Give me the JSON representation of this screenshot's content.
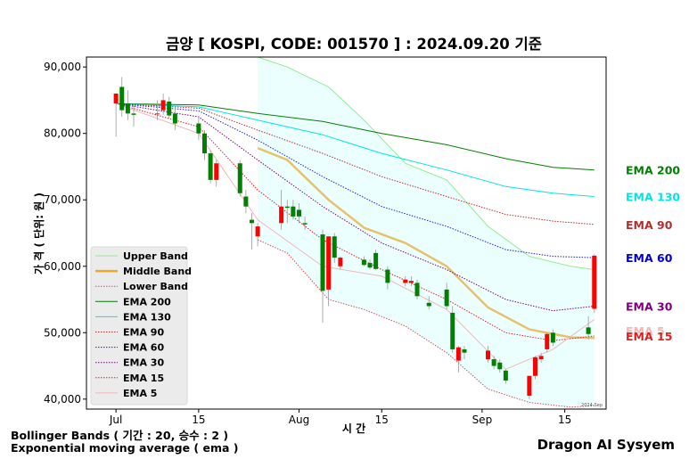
{
  "chart_data": {
    "type": "candlestick",
    "title": "금양 [ KOSPI, CODE: 001570 ] : 2024.09.20 기준",
    "xlabel": "시 간",
    "ylabel": "가 격 ( 단위: 원 )",
    "ylim": [
      38500,
      91500
    ],
    "yticks": [
      40000,
      50000,
      60000,
      70000,
      80000,
      90000
    ],
    "ytick_labels": [
      "40,000",
      "50,000",
      "60,000",
      "70,000",
      "80,000",
      "90,000"
    ],
    "xticks": [
      {
        "date": "2024-07-01",
        "label": "Jul"
      },
      {
        "date": "2024-07-15",
        "label": "15"
      },
      {
        "date": "2024-08-01",
        "label": "Aug"
      },
      {
        "date": "2024-08-15",
        "label": "15"
      },
      {
        "date": "2024-09-01",
        "label": "Sep"
      },
      {
        "date": "2024-09-15",
        "label": "15"
      }
    ],
    "xrange": [
      "2024-06-26",
      "2024-09-22"
    ],
    "corner_label": "2024-Sep",
    "grid": false,
    "legend_position": "lower-left",
    "candles": [
      {
        "date": "2024-07-01",
        "open": 84500,
        "high": 86000,
        "low": 79500,
        "close": 86000
      },
      {
        "date": "2024-07-02",
        "open": 87000,
        "high": 88500,
        "low": 82500,
        "close": 83500
      },
      {
        "date": "2024-07-03",
        "open": 84500,
        "high": 86500,
        "low": 82000,
        "close": 83000
      },
      {
        "date": "2024-07-04",
        "open": 83000,
        "high": 84500,
        "low": 81000,
        "close": 82800
      },
      {
        "date": "2024-07-08",
        "open": 83000,
        "high": 85000,
        "low": 82000,
        "close": 83000
      },
      {
        "date": "2024-07-09",
        "open": 83500,
        "high": 86000,
        "low": 82800,
        "close": 85000
      },
      {
        "date": "2024-07-10",
        "open": 84800,
        "high": 85500,
        "low": 82300,
        "close": 82700
      },
      {
        "date": "2024-07-11",
        "open": 83000,
        "high": 84000,
        "low": 80500,
        "close": 81500
      },
      {
        "date": "2024-07-15",
        "open": 81500,
        "high": 82500,
        "low": 79000,
        "close": 80000
      },
      {
        "date": "2024-07-16",
        "open": 80000,
        "high": 80500,
        "low": 76000,
        "close": 77000
      },
      {
        "date": "2024-07-17",
        "open": 77000,
        "high": 77500,
        "low": 72500,
        "close": 73000
      },
      {
        "date": "2024-07-18",
        "open": 73000,
        "high": 76000,
        "low": 72000,
        "close": 75500
      },
      {
        "date": "2024-07-22",
        "open": 75500,
        "high": 76000,
        "low": 70500,
        "close": 71000
      },
      {
        "date": "2024-07-23",
        "open": 70500,
        "high": 71500,
        "low": 68000,
        "close": 69000
      },
      {
        "date": "2024-07-24",
        "open": 67000,
        "high": 68000,
        "low": 62500,
        "close": 66500
      },
      {
        "date": "2024-07-25",
        "open": 64500,
        "high": 66500,
        "low": 63000,
        "close": 66000
      },
      {
        "date": "2024-07-29",
        "open": 66500,
        "high": 71500,
        "low": 65500,
        "close": 69000
      },
      {
        "date": "2024-07-30",
        "open": 69000,
        "high": 70000,
        "low": 66500,
        "close": 68800
      },
      {
        "date": "2024-07-31",
        "open": 69000,
        "high": 70000,
        "low": 67000,
        "close": 67500
      },
      {
        "date": "2024-08-01",
        "open": 68500,
        "high": 69500,
        "low": 66500,
        "close": 67500
      },
      {
        "date": "2024-08-02",
        "open": 66500,
        "high": 67500,
        "low": 65500,
        "close": 66300
      },
      {
        "date": "2024-08-05",
        "open": 64800,
        "high": 65500,
        "low": 51500,
        "close": 56300
      },
      {
        "date": "2024-08-06",
        "open": 56500,
        "high": 64500,
        "low": 54000,
        "close": 64500
      },
      {
        "date": "2024-08-07",
        "open": 64500,
        "high": 65000,
        "low": 60500,
        "close": 61300
      },
      {
        "date": "2024-08-08",
        "open": 60000,
        "high": 61500,
        "low": 59500,
        "close": 61300
      },
      {
        "date": "2024-08-12",
        "open": 61000,
        "high": 61500,
        "low": 60000,
        "close": 60200
      },
      {
        "date": "2024-08-13",
        "open": 60500,
        "high": 61000,
        "low": 59500,
        "close": 59800
      },
      {
        "date": "2024-08-14",
        "open": 62000,
        "high": 62500,
        "low": 59500,
        "close": 59600
      },
      {
        "date": "2024-08-16",
        "open": 59500,
        "high": 60000,
        "low": 56500,
        "close": 57500
      },
      {
        "date": "2024-08-19",
        "open": 57500,
        "high": 58500,
        "low": 57000,
        "close": 58000
      },
      {
        "date": "2024-08-20",
        "open": 57500,
        "high": 58500,
        "low": 57000,
        "close": 57800
      },
      {
        "date": "2024-08-21",
        "open": 57500,
        "high": 58000,
        "low": 55000,
        "close": 55500
      },
      {
        "date": "2024-08-23",
        "open": 54500,
        "high": 55500,
        "low": 53500,
        "close": 54000
      },
      {
        "date": "2024-08-26",
        "open": 56500,
        "high": 57500,
        "low": 53500,
        "close": 54000
      },
      {
        "date": "2024-08-27",
        "open": 53000,
        "high": 54000,
        "low": 47000,
        "close": 47500
      },
      {
        "date": "2024-08-28",
        "open": 45800,
        "high": 48000,
        "low": 44000,
        "close": 47800
      },
      {
        "date": "2024-08-29",
        "open": 47500,
        "high": 48000,
        "low": 46000,
        "close": 47000
      },
      {
        "date": "2024-09-02",
        "open": 46000,
        "high": 48000,
        "low": 45500,
        "close": 47300
      },
      {
        "date": "2024-09-03",
        "open": 46000,
        "high": 46500,
        "low": 44500,
        "close": 45000
      },
      {
        "date": "2024-09-04",
        "open": 45500,
        "high": 46000,
        "low": 44000,
        "close": 44500
      },
      {
        "date": "2024-09-05",
        "open": 44300,
        "high": 44500,
        "low": 42300,
        "close": 42800
      },
      {
        "date": "2024-09-09",
        "open": 40500,
        "high": 43500,
        "low": 40000,
        "close": 43500
      },
      {
        "date": "2024-09-10",
        "open": 43500,
        "high": 46500,
        "low": 43000,
        "close": 46300
      },
      {
        "date": "2024-09-11",
        "open": 46000,
        "high": 47000,
        "low": 45500,
        "close": 46500
      },
      {
        "date": "2024-09-12",
        "open": 47500,
        "high": 50000,
        "low": 47000,
        "close": 49800
      },
      {
        "date": "2024-09-13",
        "open": 50000,
        "high": 50500,
        "low": 48000,
        "close": 48500
      },
      {
        "date": "2024-09-19",
        "open": 50800,
        "high": 52500,
        "low": 49000,
        "close": 49800
      },
      {
        "date": "2024-09-20",
        "open": 53600,
        "high": 61800,
        "low": 53000,
        "close": 61600
      }
    ],
    "series": [
      {
        "name": "Upper Band",
        "color": "#90ee90",
        "style": "solid",
        "x": [
          "2024-07-25",
          "2024-07-30",
          "2024-08-06",
          "2024-08-12",
          "2024-08-19",
          "2024-08-26",
          "2024-09-02",
          "2024-09-09",
          "2024-09-16",
          "2024-09-20"
        ],
        "values": [
          91500,
          90000,
          87000,
          82000,
          75500,
          73000,
          66000,
          61500,
          60000,
          59500
        ]
      },
      {
        "name": "Middle Band",
        "color": "#e8c26a",
        "style": "solid",
        "x": [
          "2024-07-25",
          "2024-07-30",
          "2024-08-06",
          "2024-08-12",
          "2024-08-19",
          "2024-08-26",
          "2024-09-02",
          "2024-09-09",
          "2024-09-16",
          "2024-09-20"
        ],
        "values": [
          77800,
          76000,
          70000,
          65800,
          63500,
          60000,
          53800,
          50500,
          49300,
          49200
        ]
      },
      {
        "name": "Lower Band",
        "color": "#d24e4e",
        "style": "dotted",
        "x": [
          "2024-07-25",
          "2024-07-30",
          "2024-08-06",
          "2024-08-12",
          "2024-08-19",
          "2024-08-26",
          "2024-09-02",
          "2024-09-09",
          "2024-09-16",
          "2024-09-20"
        ],
        "values": [
          64000,
          62000,
          55000,
          53500,
          51000,
          47000,
          41500,
          39500,
          38800,
          39000
        ]
      },
      {
        "name": "EMA 200",
        "color": "#008000",
        "style": "solid",
        "x": [
          "2024-07-01",
          "2024-07-15",
          "2024-07-25",
          "2024-08-05",
          "2024-08-15",
          "2024-08-26",
          "2024-09-05",
          "2024-09-13",
          "2024-09-20"
        ],
        "values": [
          84500,
          84300,
          83000,
          81800,
          80000,
          78300,
          76200,
          74900,
          74500
        ]
      },
      {
        "name": "EMA 130",
        "color": "#00e5e5",
        "style": "solid",
        "x": [
          "2024-07-01",
          "2024-07-15",
          "2024-07-25",
          "2024-08-05",
          "2024-08-15",
          "2024-08-26",
          "2024-09-05",
          "2024-09-13",
          "2024-09-20"
        ],
        "values": [
          84500,
          84000,
          82000,
          79800,
          77000,
          74500,
          72000,
          71000,
          70500
        ]
      },
      {
        "name": "EMA 90",
        "color": "#b03030",
        "style": "dotted",
        "x": [
          "2024-07-01",
          "2024-07-15",
          "2024-07-25",
          "2024-08-05",
          "2024-08-15",
          "2024-08-26",
          "2024-09-05",
          "2024-09-13",
          "2024-09-20"
        ],
        "values": [
          84500,
          83800,
          80500,
          77000,
          73500,
          70500,
          67800,
          66800,
          66300
        ]
      },
      {
        "name": "EMA 60",
        "color": "#2020d0",
        "style": "dotted",
        "x": [
          "2024-07-01",
          "2024-07-15",
          "2024-07-25",
          "2024-08-05",
          "2024-08-15",
          "2024-08-26",
          "2024-09-05",
          "2024-09-13",
          "2024-09-20"
        ],
        "values": [
          84500,
          83400,
          79000,
          73500,
          69000,
          66000,
          62500,
          61500,
          61300
        ]
      },
      {
        "name": "EMA 30",
        "color": "#800080",
        "style": "dotted",
        "x": [
          "2024-07-01",
          "2024-07-15",
          "2024-07-25",
          "2024-08-05",
          "2024-08-15",
          "2024-08-26",
          "2024-09-05",
          "2024-09-13",
          "2024-09-20"
        ],
        "values": [
          84500,
          82500,
          76000,
          69000,
          63500,
          59500,
          55000,
          53300,
          54000
        ]
      },
      {
        "name": "EMA 15",
        "color": "#e02020",
        "style": "dotted",
        "x": [
          "2024-07-01",
          "2024-07-15",
          "2024-07-25",
          "2024-08-05",
          "2024-08-15",
          "2024-08-26",
          "2024-09-05",
          "2024-09-13",
          "2024-09-20"
        ],
        "values": [
          84500,
          81000,
          71500,
          64000,
          59500,
          55000,
          50000,
          48800,
          49500
        ]
      },
      {
        "name": "EMA 5",
        "color": "#f4b6b6",
        "style": "solid",
        "x": [
          "2024-07-01",
          "2024-07-15",
          "2024-07-25",
          "2024-08-05",
          "2024-08-15",
          "2024-08-26",
          "2024-09-05",
          "2024-09-13",
          "2024-09-20"
        ],
        "values": [
          84500,
          80000,
          67000,
          60000,
          58500,
          53500,
          44500,
          47500,
          52000
        ]
      }
    ],
    "right_labels": [
      {
        "text": "EMA 200",
        "color": "#008000",
        "y": 74500
      },
      {
        "text": "EMA 130",
        "color": "#00e5e5",
        "y": 70500
      },
      {
        "text": "EMA 90",
        "color": "#b03030",
        "y": 66300
      },
      {
        "text": "EMA 60",
        "color": "#0000d0",
        "y": 61300
      },
      {
        "text": "EMA 30",
        "color": "#800080",
        "y": 54000
      },
      {
        "text": "EMA 5",
        "color": "#f4b6b6",
        "y": 50300
      },
      {
        "text": "EMA 15",
        "color": "#e02020",
        "y": 49500
      }
    ],
    "legend": [
      {
        "label": "Upper Band",
        "color": "#90ee90",
        "style": "solid",
        "weight": "thin"
      },
      {
        "label": "Middle Band",
        "color": "#f5a623",
        "style": "solid",
        "weight": "thick"
      },
      {
        "label": "Lower Band",
        "color": "#d24e4e",
        "style": "dotted",
        "weight": "thin"
      },
      {
        "label": "EMA 200",
        "color": "#008000",
        "style": "solid",
        "weight": "thin"
      },
      {
        "label": "EMA 130",
        "color": "#00e5e5",
        "style": "solid",
        "weight": "thin"
      },
      {
        "label": "EMA 90",
        "color": "#b03030",
        "style": "dotted",
        "weight": "thin"
      },
      {
        "label": "EMA 60",
        "color": "#2020d0",
        "style": "dotted",
        "weight": "thin"
      },
      {
        "label": "EMA 30",
        "color": "#800080",
        "style": "dotted",
        "weight": "thin"
      },
      {
        "label": "EMA 15",
        "color": "#e02020",
        "style": "dotted",
        "weight": "thin"
      },
      {
        "label": "EMA 5",
        "color": "#f4b6b6",
        "style": "solid",
        "weight": "thin"
      }
    ],
    "colors": {
      "up": "#ff0000",
      "down": "#008000",
      "band_fill": "#e0ffff"
    }
  },
  "footer": {
    "note_line1": "Bollinger Bands ( 기간 : 20, 승수 : 2 )",
    "note_line2": "Exponential moving average ( ema )",
    "brand": "Dragon AI Sysyem"
  }
}
